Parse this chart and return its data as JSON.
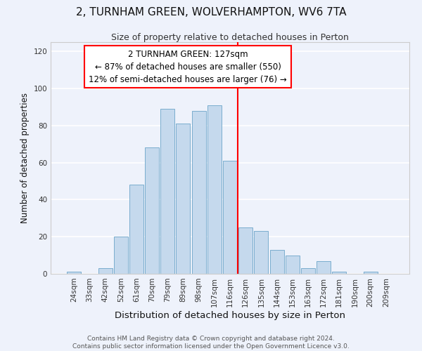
{
  "title": "2, TURNHAM GREEN, WOLVERHAMPTON, WV6 7TA",
  "subtitle": "Size of property relative to detached houses in Perton",
  "xlabel": "Distribution of detached houses by size in Perton",
  "ylabel": "Number of detached properties",
  "bar_labels": [
    "24sqm",
    "33sqm",
    "42sqm",
    "52sqm",
    "61sqm",
    "70sqm",
    "79sqm",
    "89sqm",
    "98sqm",
    "107sqm",
    "116sqm",
    "126sqm",
    "135sqm",
    "144sqm",
    "153sqm",
    "163sqm",
    "172sqm",
    "181sqm",
    "190sqm",
    "200sqm",
    "209sqm"
  ],
  "bar_values": [
    1,
    0,
    3,
    20,
    48,
    68,
    89,
    81,
    88,
    91,
    61,
    25,
    23,
    13,
    10,
    3,
    7,
    1,
    0,
    1,
    0
  ],
  "bar_color": "#c5d9ed",
  "bar_edge_color": "#7aadce",
  "vline_x_index": 11,
  "vline_color": "red",
  "annotation_text": "2 TURNHAM GREEN: 127sqm\n← 87% of detached houses are smaller (550)\n12% of semi-detached houses are larger (76) →",
  "annotation_box_edge_color": "red",
  "annotation_fontsize": 8.5,
  "title_fontsize": 11,
  "subtitle_fontsize": 9,
  "xlabel_fontsize": 9.5,
  "ylabel_fontsize": 8.5,
  "tick_fontsize": 7.5,
  "footer_text": "Contains HM Land Registry data © Crown copyright and database right 2024.\nContains public sector information licensed under the Open Government Licence v3.0.",
  "footer_fontsize": 6.5,
  "ylim": [
    0,
    125
  ],
  "yticks": [
    0,
    20,
    40,
    60,
    80,
    100,
    120
  ],
  "background_color": "#eef2fb",
  "grid_color": "white"
}
